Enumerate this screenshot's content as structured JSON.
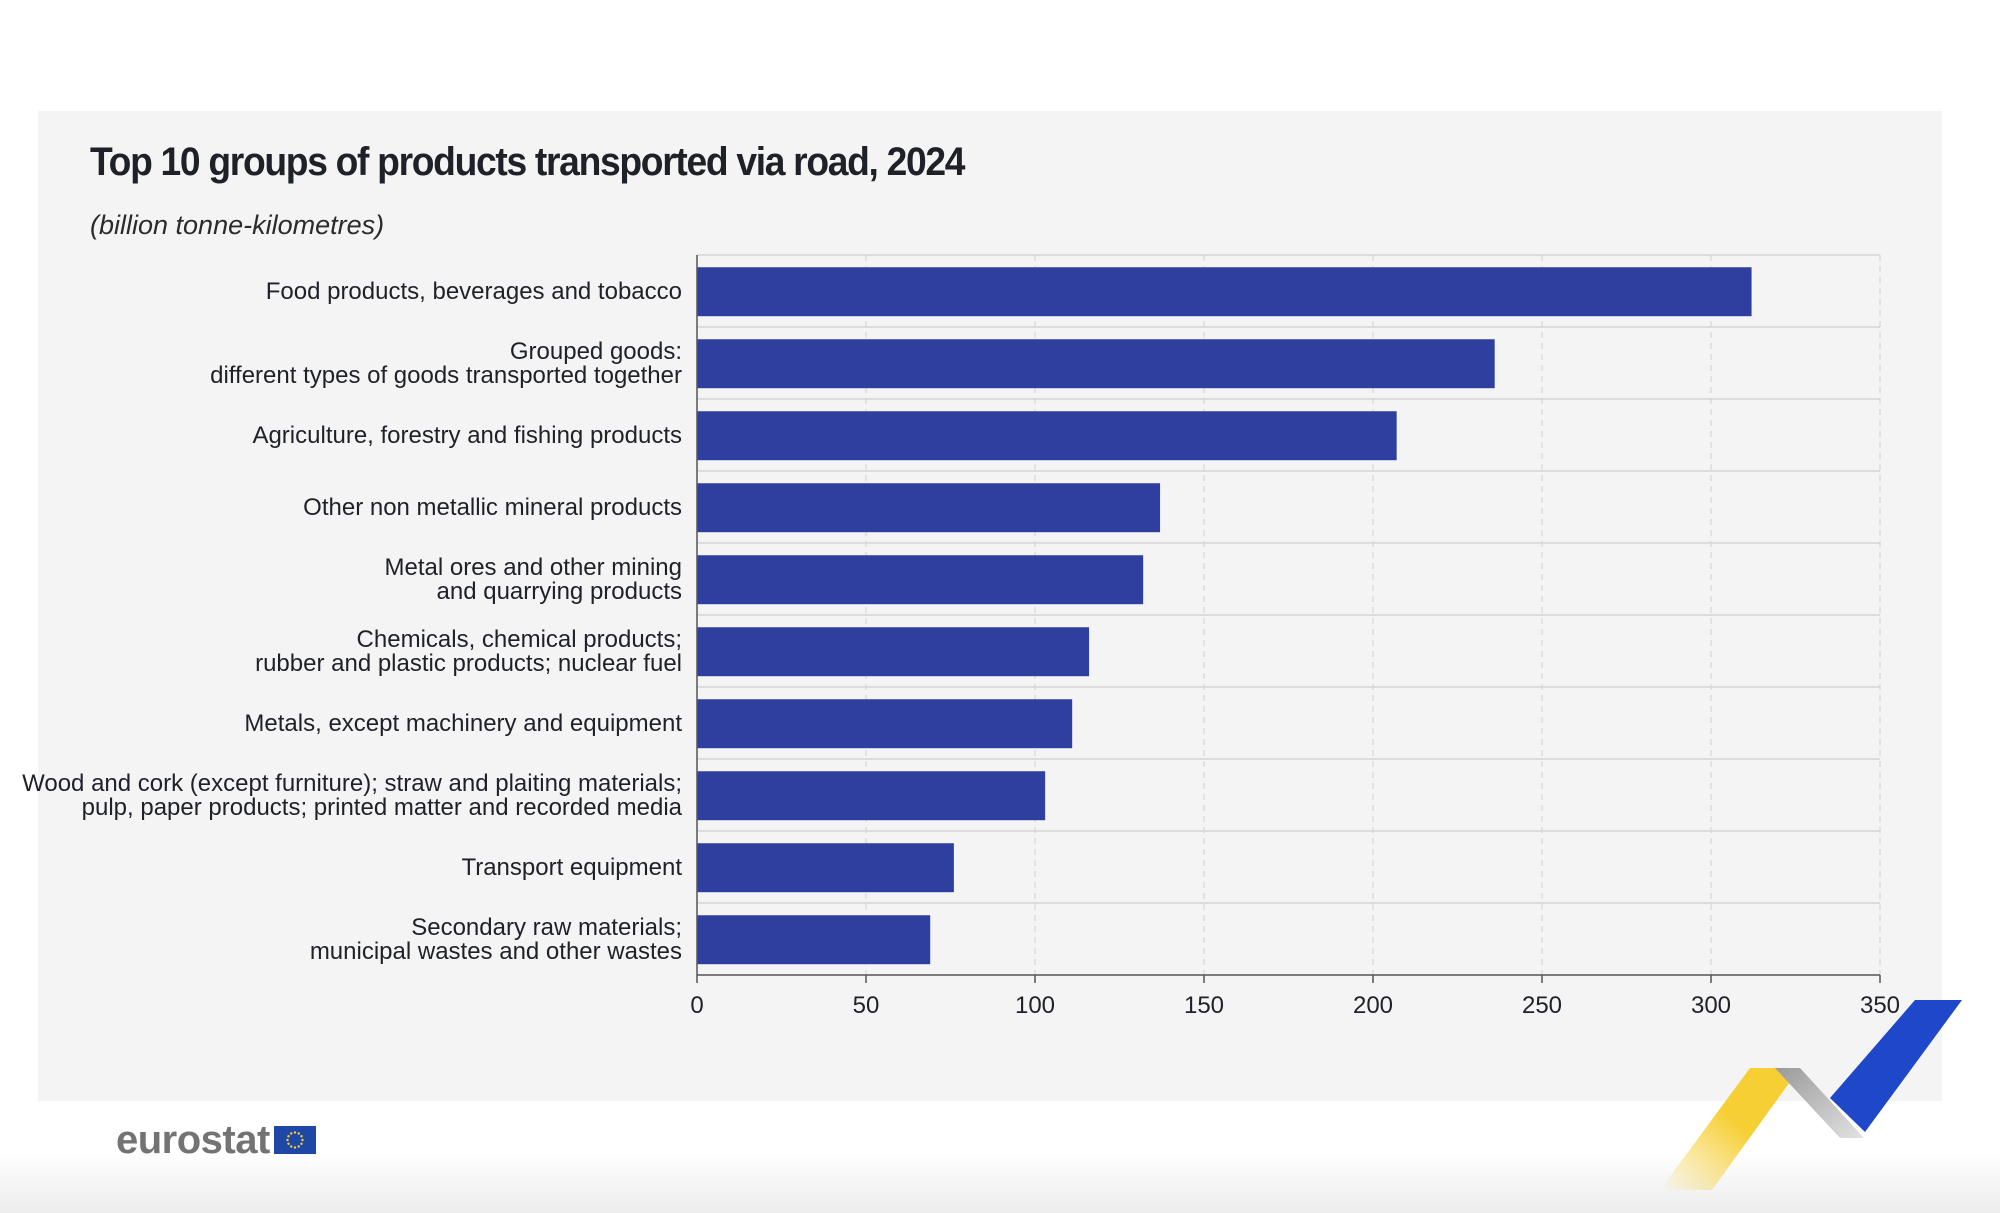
{
  "chart_data": {
    "type": "bar",
    "orientation": "horizontal",
    "title": "Top 10 groups of products transported via road, 2024",
    "subtitle": "(billion tonne-kilometres)",
    "categories": [
      [
        "Food products, beverages and tobacco"
      ],
      [
        "Grouped goods:",
        "different types of goods transported together"
      ],
      [
        "Agriculture, forestry and fishing products"
      ],
      [
        "Other non metallic mineral products"
      ],
      [
        "Metal ores and other mining",
        "and quarrying products"
      ],
      [
        "Chemicals, chemical products;",
        "rubber and plastic products; nuclear fuel"
      ],
      [
        "Metals, except machinery and equipment"
      ],
      [
        "Wood and cork (except furniture); straw and plaiting materials;",
        "pulp, paper products; printed matter and recorded media"
      ],
      [
        "Transport equipment"
      ],
      [
        "Secondary raw materials;",
        "municipal wastes and other wastes"
      ]
    ],
    "values": [
      312,
      236,
      207,
      137,
      132,
      116,
      111,
      103,
      76,
      69
    ],
    "xlim": [
      0,
      350
    ],
    "xticks": [
      0,
      50,
      100,
      150,
      200,
      250,
      300,
      350
    ],
    "grid": true,
    "bar_color": "#2e3fa0"
  },
  "brand": {
    "logo_text": "eurostat",
    "colors": {
      "accent_blue": "#2e3fa0",
      "logo_grey": "#737373",
      "eu_blue": "#1f47a6",
      "eu_yellow": "#f6cf35"
    }
  }
}
